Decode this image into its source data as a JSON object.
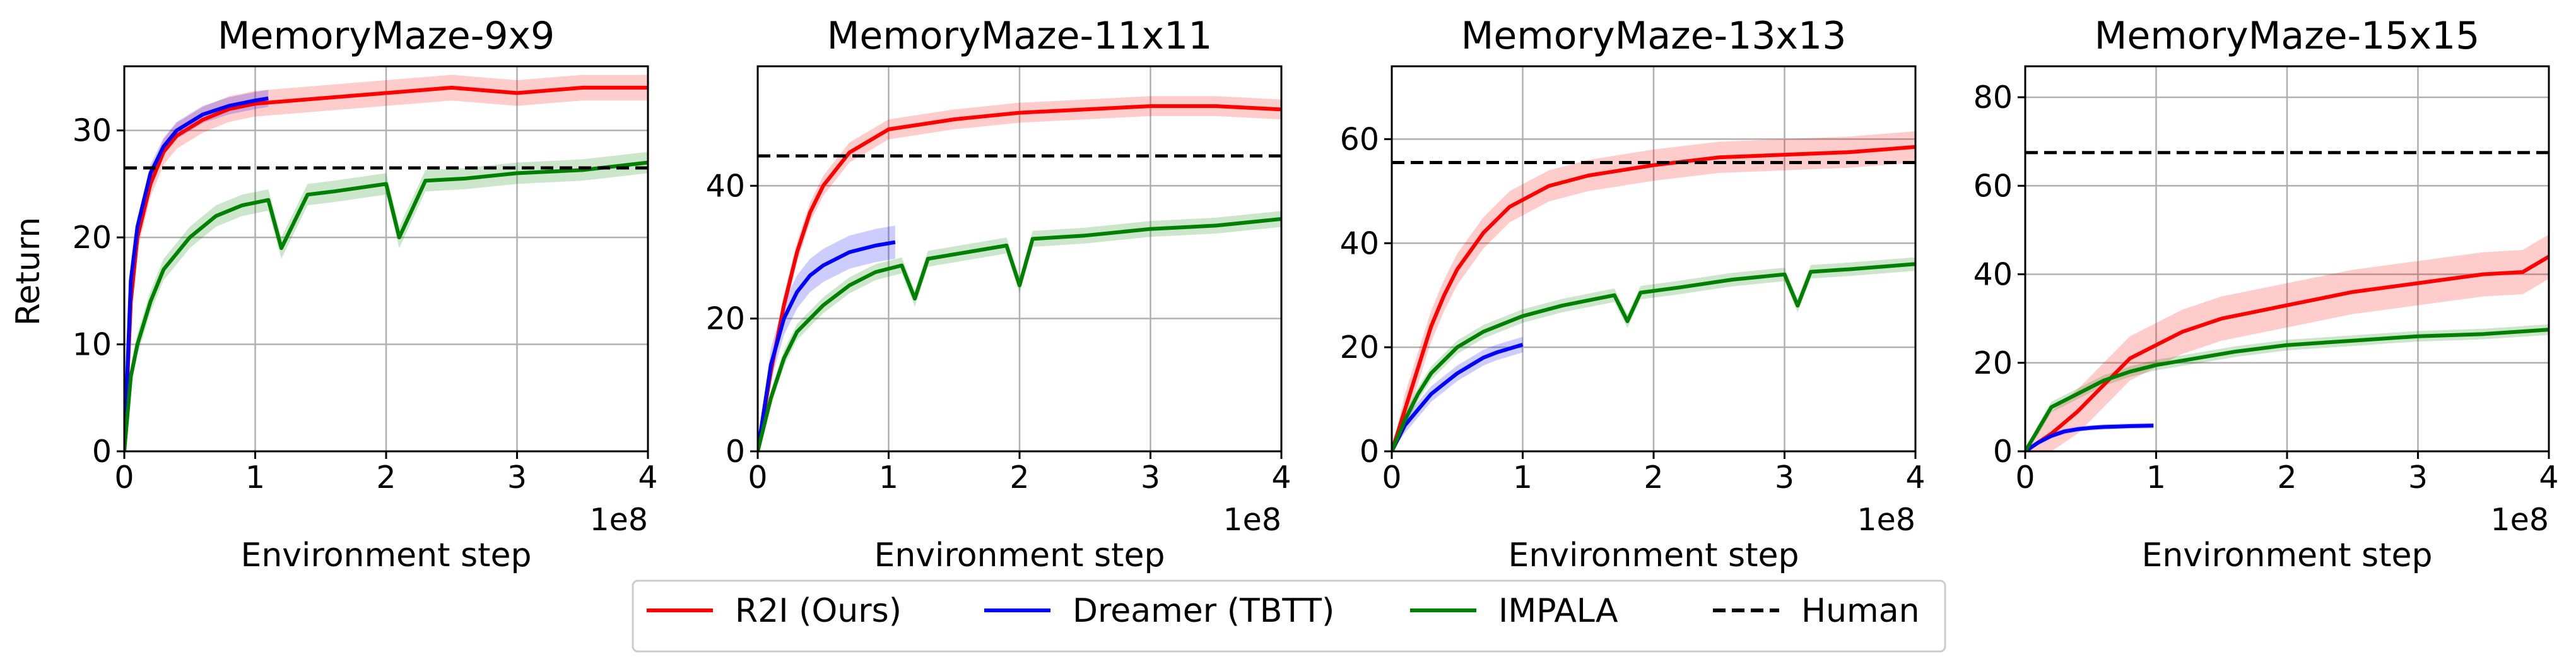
{
  "figure": {
    "shared_ylabel": "Return",
    "xlabel": "Environment step",
    "x_exponent": "1e8"
  },
  "legend": {
    "placement": "bottom-center",
    "items": [
      {
        "label": "R2I (Ours)",
        "color": "#ff0000",
        "style": "solid"
      },
      {
        "label": "Dreamer (TBTT)",
        "color": "#0000ff",
        "style": "solid"
      },
      {
        "label": "IMPALA",
        "color": "#008000",
        "style": "solid"
      },
      {
        "label": "Human",
        "color": "#000000",
        "style": "dashed"
      }
    ]
  },
  "colors": {
    "r2i": "#ff0000",
    "dreamer": "#0000ff",
    "impala": "#008000",
    "human": "#000000",
    "grid": "#b0b0b0"
  },
  "chart_data": [
    {
      "type": "line",
      "title": "MemoryMaze-9x9",
      "xlabel": "Environment step",
      "ylabel": "Return",
      "xlim": [
        0,
        4
      ],
      "ylim": [
        0,
        36
      ],
      "xticks": [
        0,
        1,
        2,
        3,
        4
      ],
      "yticks": [
        0,
        10,
        20,
        30
      ],
      "grid": true,
      "human": 26.5,
      "series": [
        {
          "name": "R2I (Ours)",
          "x": [
            0,
            0.05,
            0.1,
            0.2,
            0.3,
            0.4,
            0.6,
            0.8,
            1.0,
            1.5,
            2.0,
            2.5,
            3.0,
            3.5,
            4.0
          ],
          "values": [
            0,
            14,
            20,
            25,
            28,
            29.5,
            31,
            32,
            32.5,
            33,
            33.5,
            34,
            33.5,
            34,
            34
          ],
          "band": 1.2
        },
        {
          "name": "Dreamer (TBTT)",
          "x": [
            0,
            0.05,
            0.1,
            0.2,
            0.3,
            0.4,
            0.6,
            0.8,
            1.0,
            1.1
          ],
          "values": [
            0,
            16,
            21,
            26,
            28.5,
            30,
            31.5,
            32.3,
            32.8,
            33
          ],
          "band": 0.8
        },
        {
          "name": "IMPALA",
          "x": [
            0,
            0.05,
            0.1,
            0.2,
            0.3,
            0.5,
            0.7,
            0.9,
            1.1,
            1.2,
            1.4,
            1.6,
            2.0,
            2.1,
            2.3,
            2.6,
            3.0,
            3.5,
            4.0
          ],
          "values": [
            0,
            7,
            10,
            14,
            17,
            20,
            22,
            23,
            23.5,
            19,
            24,
            24.3,
            25,
            20,
            25.3,
            25.5,
            26,
            26.3,
            27
          ],
          "band": 1.0
        }
      ]
    },
    {
      "type": "line",
      "title": "MemoryMaze-11x11",
      "xlabel": "Environment step",
      "ylabel": "",
      "xlim": [
        0,
        4
      ],
      "ylim": [
        0,
        58
      ],
      "xticks": [
        0,
        1,
        2,
        3,
        4
      ],
      "yticks": [
        0,
        20,
        40
      ],
      "grid": true,
      "human": 44.5,
      "series": [
        {
          "name": "R2I (Ours)",
          "x": [
            0,
            0.1,
            0.2,
            0.3,
            0.4,
            0.5,
            0.7,
            1.0,
            1.5,
            2.0,
            2.5,
            3.0,
            3.5,
            4.0
          ],
          "values": [
            0,
            12,
            22,
            30,
            36,
            40,
            45,
            48.5,
            50,
            51,
            51.5,
            52,
            52,
            51.5
          ],
          "band": 1.5
        },
        {
          "name": "Dreamer (TBTT)",
          "x": [
            0,
            0.1,
            0.2,
            0.3,
            0.4,
            0.5,
            0.7,
            0.9,
            1.05
          ],
          "values": [
            0,
            13,
            20,
            24,
            26.5,
            28,
            30,
            31,
            31.5
          ],
          "band": 2.5
        },
        {
          "name": "IMPALA",
          "x": [
            0,
            0.1,
            0.2,
            0.3,
            0.5,
            0.7,
            0.9,
            1.1,
            1.2,
            1.3,
            1.6,
            1.9,
            2.0,
            2.1,
            2.5,
            3.0,
            3.5,
            4.0
          ],
          "values": [
            0,
            8,
            14,
            18,
            22,
            25,
            27,
            28,
            23,
            29,
            30,
            31,
            25,
            32,
            32.5,
            33.5,
            34,
            35
          ],
          "band": 1.2
        }
      ]
    },
    {
      "type": "line",
      "title": "MemoryMaze-13x13",
      "xlabel": "Environment step",
      "ylabel": "",
      "xlim": [
        0,
        4
      ],
      "ylim": [
        0,
        74
      ],
      "xticks": [
        0,
        1,
        2,
        3,
        4
      ],
      "yticks": [
        0,
        20,
        40,
        60
      ],
      "grid": true,
      "human": 55.5,
      "series": [
        {
          "name": "R2I (Ours)",
          "x": [
            0,
            0.1,
            0.2,
            0.3,
            0.4,
            0.5,
            0.7,
            0.9,
            1.2,
            1.5,
            2.0,
            2.5,
            3.0,
            3.5,
            4.0
          ],
          "values": [
            0,
            8,
            16,
            24,
            30,
            35,
            42,
            47,
            51,
            53,
            55,
            56.5,
            57,
            57.5,
            58.5
          ],
          "band": 3.0
        },
        {
          "name": "Dreamer (TBTT)",
          "x": [
            0,
            0.1,
            0.2,
            0.3,
            0.4,
            0.5,
            0.6,
            0.7,
            0.8,
            1.0
          ],
          "values": [
            0,
            5,
            8,
            11,
            13,
            15,
            16.5,
            18,
            19,
            20.5
          ],
          "band": 1.5
        },
        {
          "name": "IMPALA",
          "x": [
            0,
            0.1,
            0.2,
            0.3,
            0.5,
            0.7,
            1.0,
            1.3,
            1.7,
            1.8,
            1.9,
            2.2,
            2.6,
            3.0,
            3.1,
            3.2,
            3.5,
            4.0
          ],
          "values": [
            0,
            6,
            11,
            15,
            20,
            23,
            26,
            28,
            30,
            25,
            30.5,
            31.5,
            33,
            34,
            28,
            34.5,
            35,
            36
          ],
          "band": 1.3
        }
      ]
    },
    {
      "type": "line",
      "title": "MemoryMaze-15x15",
      "xlabel": "Environment step",
      "ylabel": "",
      "xlim": [
        0,
        4
      ],
      "ylim": [
        0,
        87
      ],
      "xticks": [
        0,
        1,
        2,
        3,
        4
      ],
      "yticks": [
        0,
        20,
        40,
        60,
        80
      ],
      "grid": true,
      "human": 67.5,
      "series": [
        {
          "name": "R2I (Ours)",
          "x": [
            0,
            0.2,
            0.4,
            0.6,
            0.8,
            1.0,
            1.2,
            1.5,
            2.0,
            2.5,
            3.0,
            3.5,
            3.8,
            4.0
          ],
          "values": [
            0,
            4,
            9,
            15,
            21,
            24,
            27,
            30,
            33,
            36,
            38,
            40,
            40.5,
            44
          ],
          "band": 5.0
        },
        {
          "name": "Dreamer (TBTT)",
          "x": [
            0,
            0.1,
            0.2,
            0.3,
            0.4,
            0.5,
            0.6,
            0.7,
            0.8,
            0.98
          ],
          "values": [
            0,
            2,
            3.5,
            4.5,
            5,
            5.3,
            5.5,
            5.6,
            5.7,
            5.8
          ],
          "band": 0.6
        },
        {
          "name": "IMPALA",
          "x": [
            0,
            0.1,
            0.2,
            0.4,
            0.6,
            0.8,
            1.0,
            1.3,
            1.6,
            2.0,
            2.5,
            3.0,
            3.5,
            4.0
          ],
          "values": [
            0,
            5,
            10,
            13,
            16,
            18,
            19.5,
            21,
            22.5,
            24,
            25,
            26,
            26.5,
            27.5
          ],
          "band": 1.2
        }
      ]
    }
  ]
}
